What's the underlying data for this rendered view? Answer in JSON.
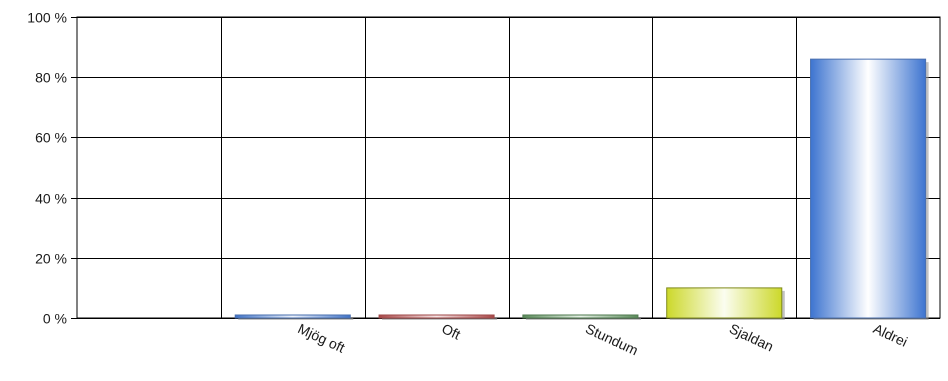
{
  "chart_data": {
    "type": "bar",
    "categories": [
      "Mjög oft",
      "Oft",
      "Stundum",
      "Sjaldan",
      "Aldrei"
    ],
    "values": [
      1,
      1,
      1,
      10,
      86
    ],
    "y_unit": "%",
    "ylim": [
      0,
      100
    ],
    "yticks": [
      0,
      20,
      40,
      60,
      80,
      100
    ],
    "ytick_labels": [
      "0 %",
      "20 %",
      "40 %",
      "60 %",
      "80 %",
      "100 %"
    ],
    "grid": true,
    "legend": "none",
    "bar_colors": [
      {
        "edge": "#4a6fae",
        "light": "#eef3fb",
        "dark": "#3f73c8"
      },
      {
        "edge": "#a04a4a",
        "light": "#f6e6e6",
        "dark": "#a84848"
      },
      {
        "edge": "#4f7a4f",
        "light": "#e8f2e8",
        "dark": "#5a8a5a"
      },
      {
        "edge": "#7f8a1a",
        "light": "#fbfdf0",
        "dark": "#ccd82a"
      },
      {
        "edge": "#4a6fae",
        "light": "#ffffff",
        "dark": "#3d74d0"
      }
    ]
  }
}
